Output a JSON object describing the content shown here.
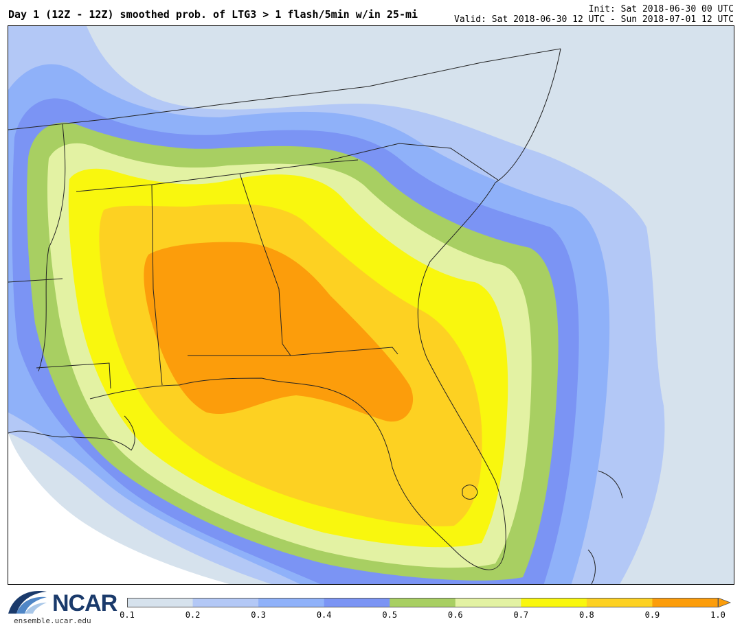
{
  "header": {
    "title": "Day 1 (12Z - 12Z) smoothed prob. of LTG3 > 1 flash/5min w/in 25-mi",
    "init": "Init: Sat 2018-06-30 00 UTC",
    "valid": "Valid: Sat 2018-06-30 12 UTC - Sun 2018-07-01 12 UTC"
  },
  "logo": {
    "name": "NCAR",
    "url": "ensemble.ucar.edu"
  },
  "legend": {
    "ticks": [
      "0.1",
      "0.2",
      "0.3",
      "0.4",
      "0.5",
      "0.6",
      "0.7",
      "0.8",
      "0.9",
      "1.0"
    ],
    "colors": [
      "#d6e2ed",
      "#b3c8f6",
      "#8fb1f9",
      "#7b94f4",
      "#a8cf62",
      "#e3f2a3",
      "#f9f70e",
      "#fdd122",
      "#fc9d0b"
    ]
  }
}
